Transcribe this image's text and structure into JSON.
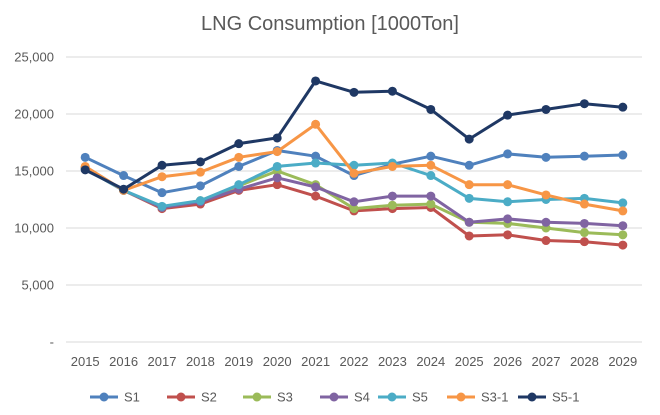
{
  "chart_data": {
    "type": "line",
    "title": "LNG Consumption [1000Ton]",
    "xlabel": "",
    "ylabel": "",
    "ylim": [
      0,
      25000
    ],
    "yticks": [
      "-",
      "5,000",
      "10,000",
      "15,000",
      "20,000",
      "25,000"
    ],
    "grid": true,
    "legend_position": "bottom",
    "categories": [
      "2015",
      "2016",
      "2017",
      "2018",
      "2019",
      "2020",
      "2021",
      "2022",
      "2023",
      "2024",
      "2025",
      "2026",
      "2027",
      "2028",
      "2029"
    ],
    "series": [
      {
        "name": "S1",
        "color": "#4F81BD",
        "values": [
          16200,
          14600,
          13100,
          13700,
          15400,
          16800,
          16300,
          14600,
          15600,
          16300,
          15500,
          16500,
          16200,
          16300,
          16400
        ]
      },
      {
        "name": "S2",
        "color": "#C0504D",
        "values": [
          15300,
          13300,
          11700,
          12100,
          13300,
          13800,
          12800,
          11500,
          11700,
          11800,
          9300,
          9400,
          8900,
          8800,
          8500
        ]
      },
      {
        "name": "S3",
        "color": "#9BBB59",
        "values": [
          15200,
          13300,
          11800,
          12400,
          13700,
          15000,
          13800,
          11700,
          12000,
          12100,
          10500,
          10400,
          10000,
          9600,
          9400
        ]
      },
      {
        "name": "S4",
        "color": "#8064A2",
        "values": [
          15200,
          13300,
          11800,
          12300,
          13400,
          14400,
          13600,
          12300,
          12800,
          12800,
          10500,
          10800,
          10500,
          10400,
          10200
        ]
      },
      {
        "name": "S5",
        "color": "#4BACC6",
        "values": [
          15200,
          13300,
          11900,
          12400,
          13800,
          15400,
          15700,
          15500,
          15700,
          14600,
          12600,
          12300,
          12500,
          12600,
          12200
        ]
      },
      {
        "name": "S3-1",
        "color": "#F79646",
        "values": [
          15400,
          13300,
          14500,
          14900,
          16200,
          16700,
          19100,
          14800,
          15400,
          15500,
          13800,
          13800,
          12900,
          12100,
          11500
        ]
      },
      {
        "name": "S5-1",
        "color": "#1F3864",
        "values": [
          15100,
          13400,
          15500,
          15800,
          17400,
          17900,
          22900,
          21900,
          22000,
          20400,
          17800,
          19900,
          20400,
          20900,
          20600
        ]
      }
    ]
  }
}
